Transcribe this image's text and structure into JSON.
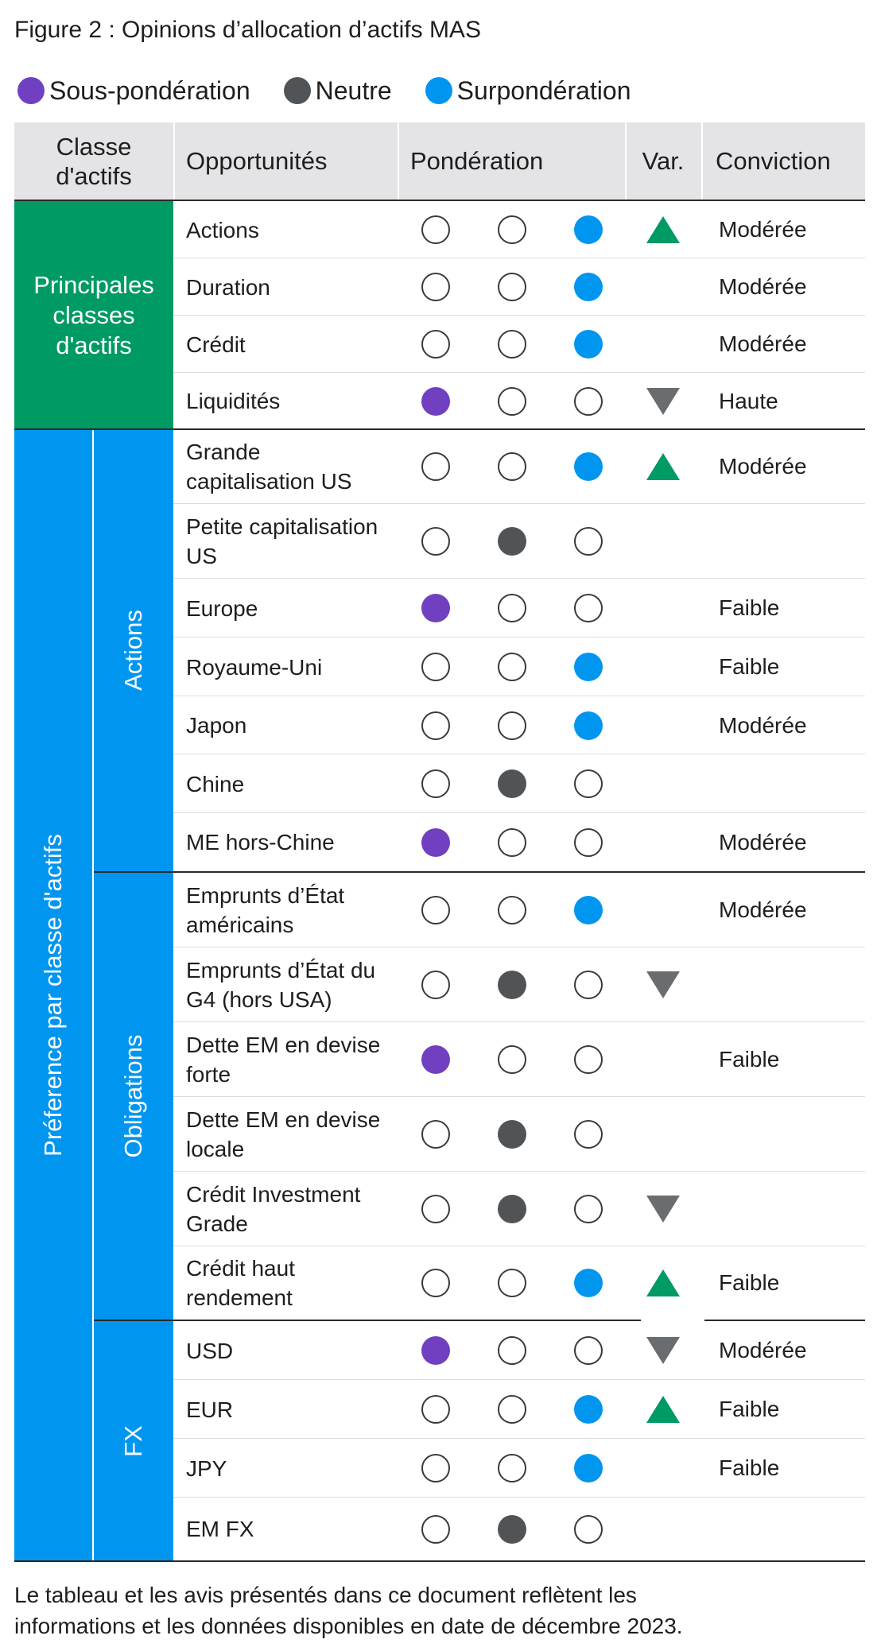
{
  "title": "Figure 2 : Opinions d’allocation d’actifs MAS",
  "legend": [
    {
      "label": "Sous-pondération",
      "color": "#7040c0"
    },
    {
      "label": "Neutre",
      "color": "#505457"
    },
    {
      "label": "Surpondération",
      "color": "#0096f0"
    }
  ],
  "colors": {
    "main_block": "#009a63",
    "preference_block": "#0096f0",
    "up_arrow": "#009a63",
    "down_arrow": "#6a6d70",
    "header_bg": "#e4e4e6"
  },
  "header": {
    "asset_class": "Classe d'actifs",
    "opportunities": "Opportunités",
    "weighting": "Pondération",
    "change": "Var.",
    "conviction": "Conviction"
  },
  "groups": {
    "main": "Principales classes d'actifs",
    "preference": "Préference par classe d'actifs",
    "equities": "Actions",
    "bonds": "Obligations",
    "fx": "FX"
  },
  "rows": [
    {
      "name": "Actions",
      "weight": "over",
      "change": "up",
      "conviction": "Modérée"
    },
    {
      "name": "Duration",
      "weight": "over",
      "change": "",
      "conviction": "Modérée"
    },
    {
      "name": "Crédit",
      "weight": "over",
      "change": "",
      "conviction": "Modérée"
    },
    {
      "name": "Liquidités",
      "weight": "under",
      "change": "down",
      "conviction": "Haute"
    },
    {
      "name": "Grande capitalisation US",
      "weight": "over",
      "change": "up",
      "conviction": "Modérée"
    },
    {
      "name": "Petite capitalisation US",
      "weight": "neutral",
      "change": "",
      "conviction": ""
    },
    {
      "name": "Europe",
      "weight": "under",
      "change": "",
      "conviction": "Faible"
    },
    {
      "name": "Royaume-Uni",
      "weight": "over",
      "change": "",
      "conviction": "Faible"
    },
    {
      "name": "Japon",
      "weight": "over",
      "change": "",
      "conviction": "Modérée"
    },
    {
      "name": "Chine",
      "weight": "neutral",
      "change": "",
      "conviction": ""
    },
    {
      "name": "ME hors-Chine",
      "weight": "under",
      "change": "",
      "conviction": "Modérée"
    },
    {
      "name": "Emprunts d’État américains",
      "weight": "over",
      "change": "",
      "conviction": "Modérée"
    },
    {
      "name": "Emprunts d’État du G4 (hors USA)",
      "weight": "neutral",
      "change": "down",
      "conviction": ""
    },
    {
      "name": "Dette EM en devise forte",
      "weight": "under",
      "change": "",
      "conviction": "Faible"
    },
    {
      "name": "Dette EM en devise locale",
      "weight": "neutral",
      "change": "",
      "conviction": ""
    },
    {
      "name": "Crédit Investment Grade",
      "weight": "neutral",
      "change": "down",
      "conviction": ""
    },
    {
      "name": "Crédit haut rendement",
      "weight": "over",
      "change": "up",
      "conviction": "Faible"
    },
    {
      "name": "USD",
      "weight": "under",
      "change": "down",
      "conviction": "Modérée"
    },
    {
      "name": "EUR",
      "weight": "over",
      "change": "up",
      "conviction": "Faible"
    },
    {
      "name": "JPY",
      "weight": "over",
      "change": "",
      "conviction": "Faible"
    },
    {
      "name": "EM FX",
      "weight": "neutral",
      "change": "",
      "conviction": ""
    }
  ],
  "footnote": {
    "line1": "Le tableau et les avis présentés dans ce document reflètent les",
    "line2": "informations et les données disponibles en date de décembre 2023."
  }
}
